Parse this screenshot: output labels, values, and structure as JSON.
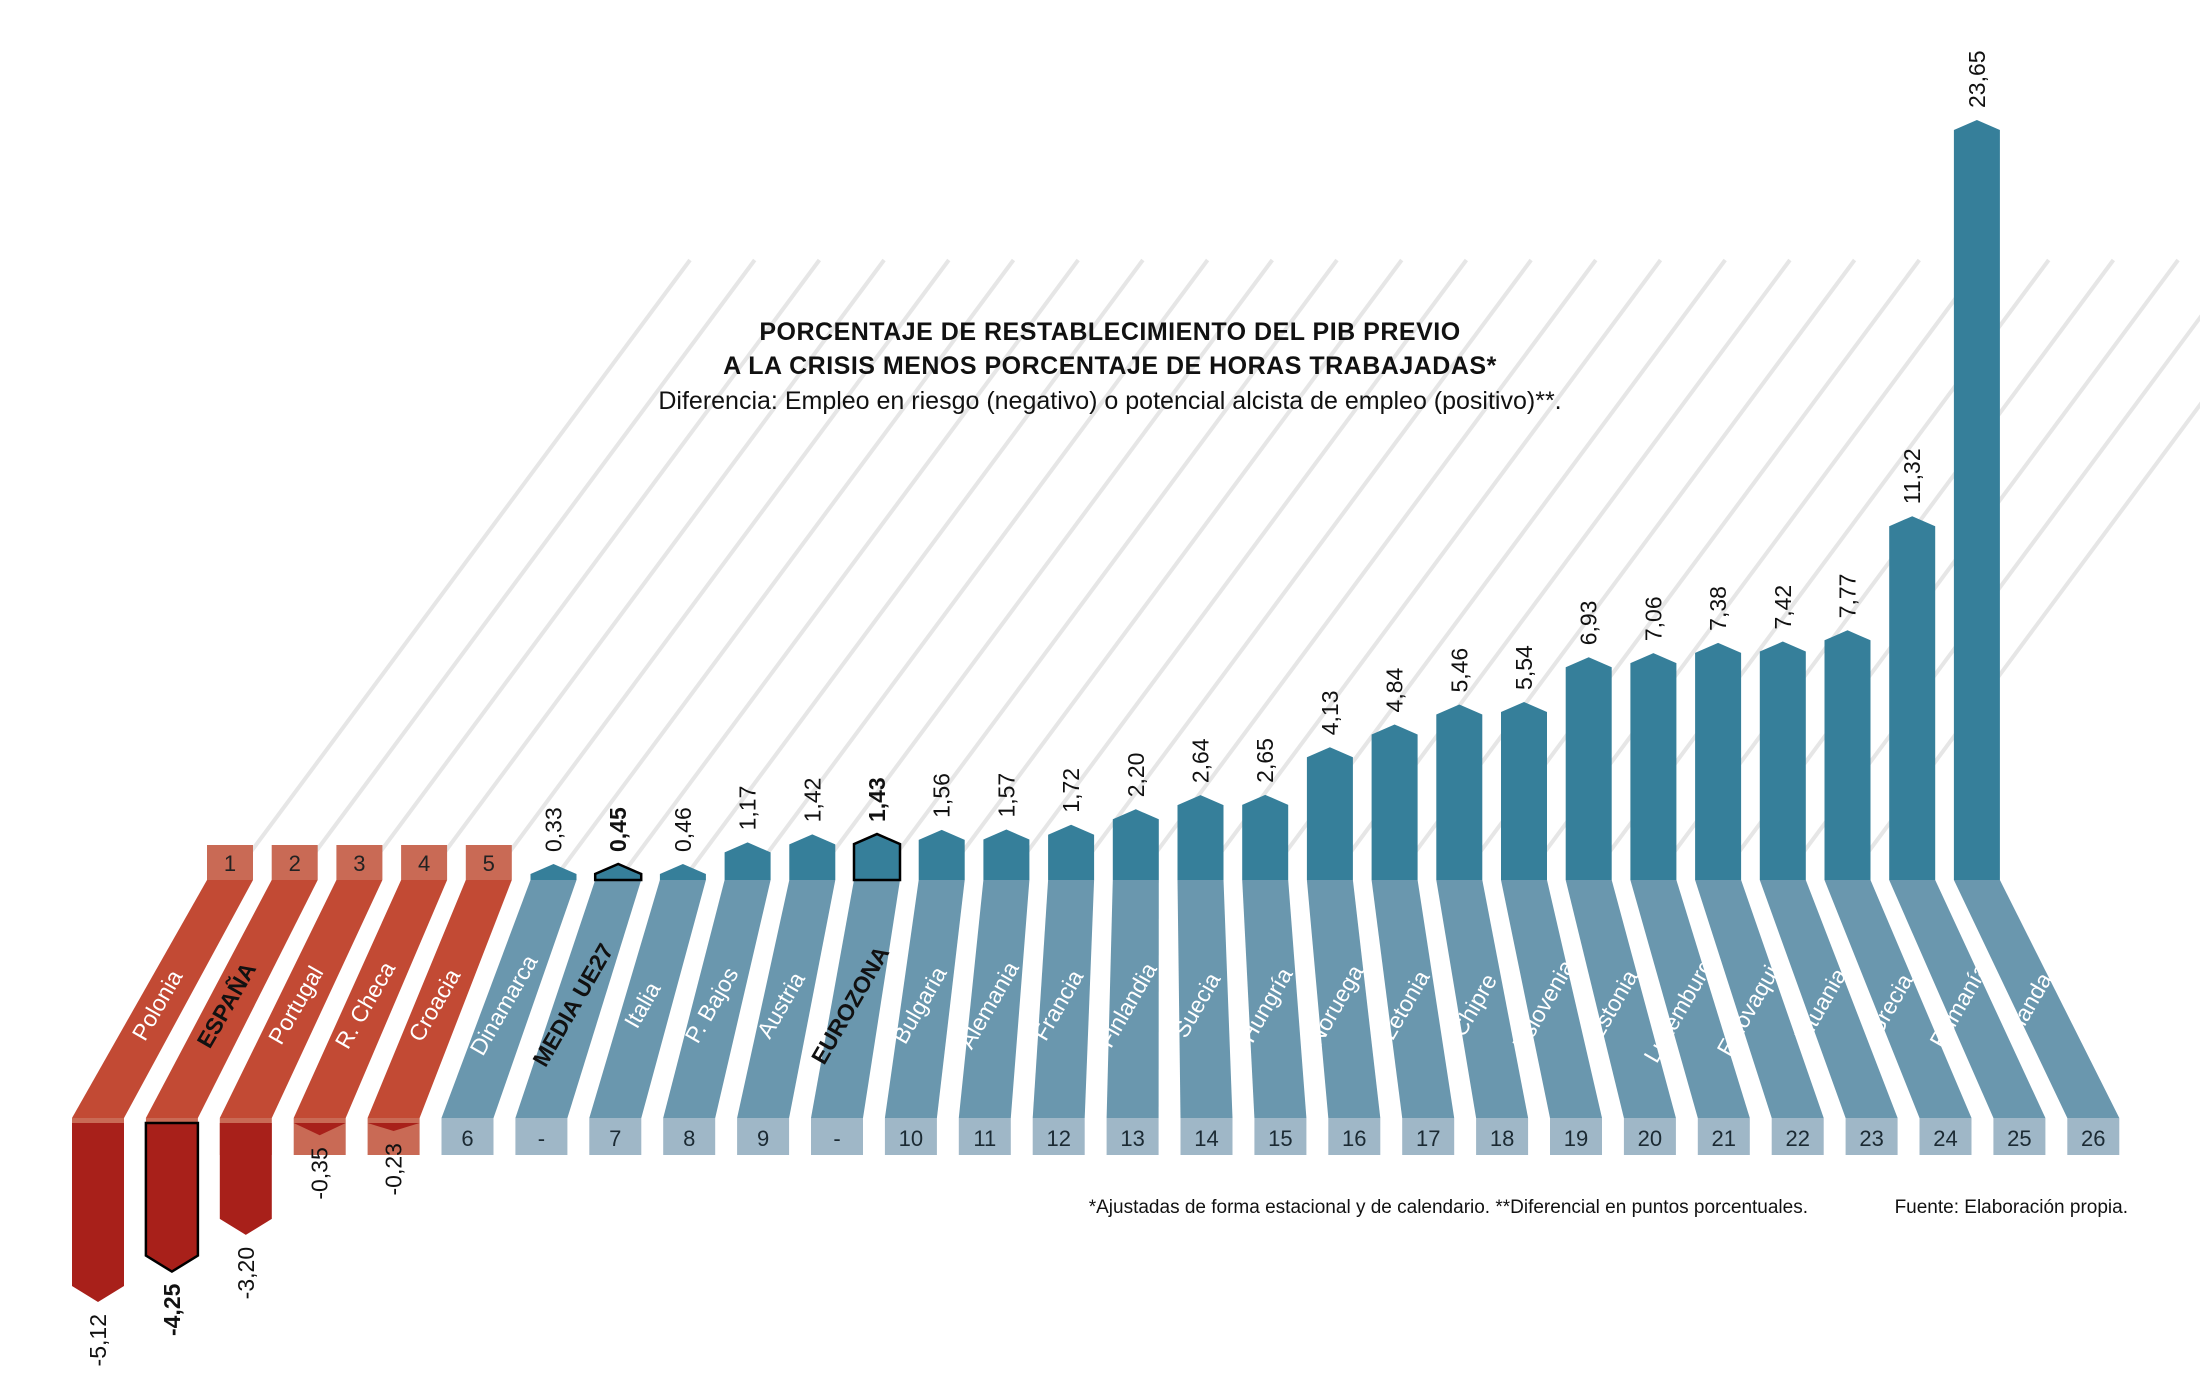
{
  "chart_data": {
    "type": "bar",
    "title_line1": "PORCENTAJE DE RESTABLECIMIENTO DEL PIB PREVIO",
    "title_line2": "A LA CRISIS MENOS PORCENTAJE DE HORAS TRABAJADAS*",
    "subtitle": "Diferencia: Empleo en riesgo (negativo) o potencial alcista de empleo (positivo)**.",
    "footnote": "*Ajustadas de forma estacional y de calendario. **Diferencial en puntos porcentuales.",
    "source": "Fuente: Elaboración propia.",
    "categories": [
      "Polonia",
      "ESPAÑA",
      "Portugal",
      "R. Checa",
      "Croacia",
      "Dinamarca",
      "MEDIA UE27",
      "Italia",
      "P. Bajos",
      "Austria",
      "EUROZONA",
      "Bulgaria",
      "Alemania",
      "Francia",
      "Finlandia",
      "Suecia",
      "Hungría",
      "Noruega",
      "Letonia",
      "Chipre",
      "Eslovenia",
      "Estonia",
      "Luxemburgo",
      "Eslovaquia",
      "Lituania",
      "Grecia",
      "Rumanía",
      "Irlanda"
    ],
    "values": [
      -5.12,
      -4.25,
      -3.2,
      -0.35,
      -0.23,
      0.33,
      0.45,
      0.46,
      1.17,
      1.42,
      1.43,
      1.56,
      1.57,
      1.72,
      2.2,
      2.64,
      2.65,
      4.13,
      4.84,
      5.46,
      5.54,
      6.93,
      7.06,
      7.38,
      7.42,
      7.77,
      11.32,
      23.65
    ],
    "value_labels": [
      "-5,12",
      "-4,25",
      "-3,20",
      "-0,35",
      "-0,23",
      "0,33",
      "0,45",
      "0,46",
      "1,17",
      "1,42",
      "1,43",
      "1,56",
      "1,57",
      "1,72",
      "2,20",
      "2,64",
      "2,65",
      "4,13",
      "4,84",
      "5,46",
      "5,54",
      "6,93",
      "7,06",
      "7,38",
      "7,42",
      "7,77",
      "11,32",
      "23,65"
    ],
    "ranks": [
      "1",
      "2",
      "3",
      "4",
      "5",
      "6",
      "-",
      "7",
      "8",
      "9",
      "-",
      "10",
      "11",
      "12",
      "13",
      "14",
      "15",
      "16",
      "17",
      "18",
      "19",
      "20",
      "21",
      "22",
      "23",
      "24",
      "25",
      "26"
    ],
    "highlighted": [
      "ESPAÑA",
      "MEDIA UE27",
      "EUROZONA"
    ],
    "colors": {
      "negative_bar": "#a8201a",
      "negative_ribbon": "#c24a34",
      "negative_rank": "#c96a55",
      "positive_bar": "#367f9a",
      "positive_ribbon": "#6a97ae",
      "positive_rank": "#9fb7c7",
      "guide_lines": "#e6e6e6"
    }
  }
}
